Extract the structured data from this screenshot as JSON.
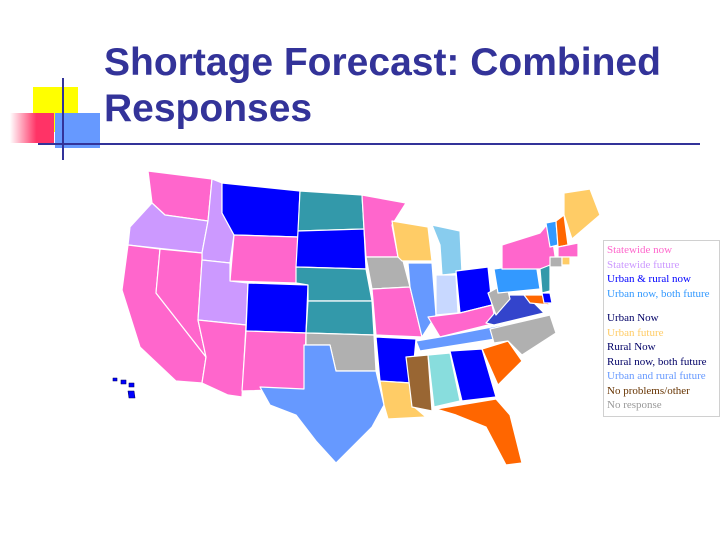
{
  "slide": {
    "title": "Shortage Forecast: Combined Responses"
  },
  "legend": {
    "items": [
      {
        "label": "Statewide now",
        "color": "#ff66cc"
      },
      {
        "label": "Statewide future",
        "color": "#cc99ff"
      },
      {
        "label": "Urban & rural now",
        "color": "#0000ff"
      },
      {
        "label": "Urban now, both future",
        "color": "#3399ff"
      },
      {
        "label": "Urban Now",
        "color": "#000066"
      },
      {
        "label": "Urban future",
        "color": "#ffcc66"
      },
      {
        "label": "Rural Now",
        "color": "#000066"
      },
      {
        "label": "Rural now, both future",
        "color": "#000066"
      },
      {
        "label": "Urban and rural future",
        "color": "#6699ff"
      },
      {
        "label": "No problems/other",
        "color": "#663300"
      },
      {
        "label": "No response",
        "color": "#999999"
      }
    ]
  },
  "colors": {
    "title": "#333399",
    "deco_yellow": "#ffff00",
    "deco_red": "#ff3366",
    "deco_blue": "#6699ff",
    "deco_line": "#333399"
  }
}
